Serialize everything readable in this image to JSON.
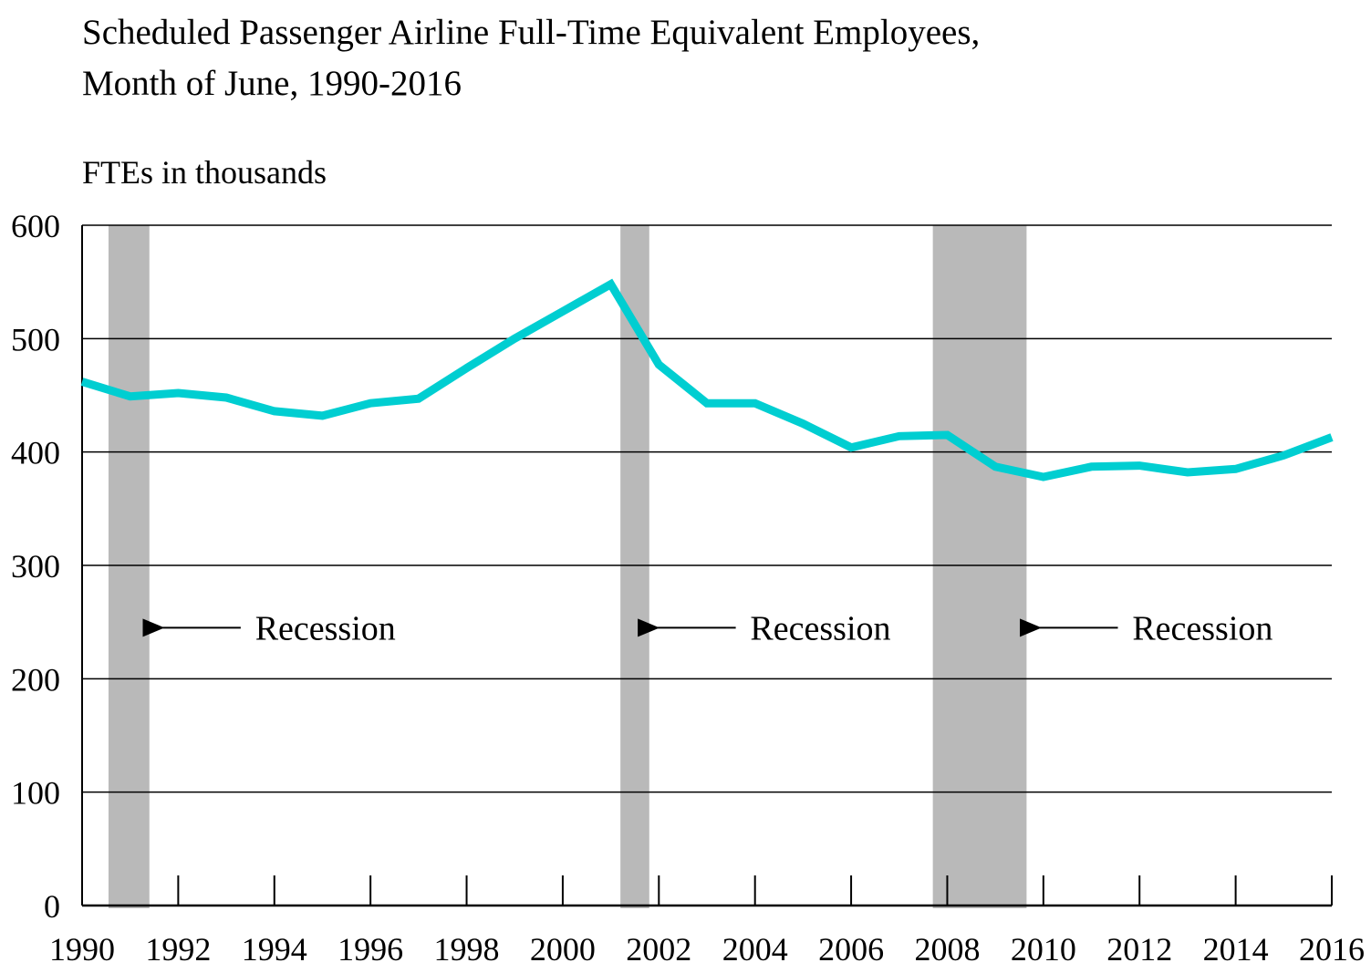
{
  "chart_data": {
    "type": "line",
    "title_lines": [
      "Scheduled Passenger Airline Full-Time Equivalent Employees,",
      "Month of June, 1990-2016"
    ],
    "ylabel": "FTEs in thousands",
    "xlabel": "",
    "xlim": [
      1990,
      2016
    ],
    "ylim": [
      0,
      600
    ],
    "yticks": [
      0,
      100,
      200,
      300,
      400,
      500,
      600
    ],
    "xticks": [
      1990,
      1992,
      1994,
      1996,
      1998,
      2000,
      2002,
      2004,
      2006,
      2008,
      2010,
      2012,
      2014,
      2016
    ],
    "grid": "horizontal",
    "series": [
      {
        "color": "#00CED1",
        "x": [
          1990,
          1991,
          1992,
          1993,
          1994,
          1995,
          1996,
          1997,
          1998,
          1999,
          2000,
          2001,
          2002,
          2003,
          2004,
          2005,
          2006,
          2007,
          2008,
          2009,
          2010,
          2011,
          2012,
          2013,
          2014,
          2015,
          2016
        ],
        "values": [
          462,
          449,
          452,
          448,
          436,
          432,
          443,
          447,
          474,
          500,
          524,
          548,
          477,
          443,
          443,
          425,
          404,
          414,
          415,
          387,
          378,
          387,
          388,
          382,
          385,
          397,
          413
        ]
      }
    ],
    "recessions": [
      {
        "start": 1990.55,
        "end": 1991.4
      },
      {
        "start": 2001.2,
        "end": 2001.8
      },
      {
        "start": 2007.7,
        "end": 2009.65
      }
    ],
    "recession_color": "#b9b9b9",
    "annotations": [
      {
        "text": "Recession",
        "arrow_to_year": 1991.45,
        "arrow_from_year": 1993.3,
        "label_year": 1993.6,
        "y": 245
      },
      {
        "text": "Recession",
        "arrow_to_year": 2001.75,
        "arrow_from_year": 2003.6,
        "label_year": 2003.9,
        "y": 245
      },
      {
        "text": "Recession",
        "arrow_to_year": 2009.7,
        "arrow_from_year": 2011.55,
        "label_year": 2011.85,
        "y": 245
      }
    ]
  }
}
